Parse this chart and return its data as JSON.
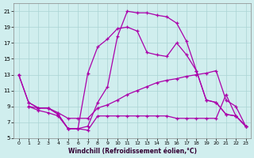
{
  "xlabel": "Windchill (Refroidissement éolien,°C)",
  "xlim": [
    -0.5,
    23.5
  ],
  "ylim": [
    5,
    22
  ],
  "xticks": [
    0,
    1,
    2,
    3,
    4,
    5,
    6,
    7,
    8,
    9,
    10,
    11,
    12,
    13,
    14,
    15,
    16,
    17,
    18,
    19,
    20,
    21,
    22,
    23
  ],
  "yticks": [
    5,
    7,
    9,
    11,
    13,
    15,
    17,
    19,
    21
  ],
  "background_color": "#d0eeee",
  "grid_color": "#aad4d4",
  "line_color": "#aa00aa",
  "lines": [
    {
      "x": [
        0,
        1,
        2,
        3,
        4,
        5,
        6,
        7,
        8,
        9,
        10,
        11,
        12,
        13,
        14,
        15,
        16,
        17,
        18,
        19,
        20,
        21,
        22,
        23
      ],
      "y": [
        13,
        9.5,
        8.8,
        8.8,
        8.0,
        6.2,
        6.2,
        6.5,
        9.5,
        11.5,
        17.8,
        21.0,
        20.8,
        20.8,
        20.5,
        20.3,
        19.5,
        17.2,
        13.5,
        9.8,
        9.5,
        8.0,
        7.8,
        6.5
      ]
    },
    {
      "x": [
        0,
        1,
        2,
        3,
        4,
        5,
        6,
        7,
        8,
        9,
        10,
        11,
        12,
        13,
        14,
        15,
        16,
        17,
        18,
        19,
        20,
        21,
        22,
        23
      ],
      "y": [
        13,
        9.5,
        8.8,
        8.8,
        8.0,
        6.2,
        6.2,
        13.2,
        16.5,
        17.5,
        18.8,
        19.0,
        18.5,
        15.8,
        15.5,
        15.3,
        17.0,
        15.5,
        13.5,
        9.8,
        9.5,
        8.0,
        7.8,
        6.5
      ]
    },
    {
      "x": [
        1,
        2,
        3,
        4,
        5,
        6,
        7,
        8,
        9,
        10,
        11,
        12,
        13,
        14,
        15,
        16,
        17,
        18,
        19,
        20,
        21,
        22,
        23
      ],
      "y": [
        9.0,
        8.8,
        8.8,
        8.2,
        7.5,
        7.5,
        7.5,
        8.8,
        9.2,
        9.8,
        10.5,
        11.0,
        11.5,
        12.0,
        12.3,
        12.5,
        12.8,
        13.0,
        13.2,
        13.5,
        9.8,
        9.0,
        6.5
      ]
    },
    {
      "x": [
        1,
        2,
        3,
        4,
        5,
        6,
        7,
        8,
        9,
        10,
        11,
        12,
        13,
        14,
        15,
        16,
        17,
        18,
        19,
        20,
        21,
        22,
        23
      ],
      "y": [
        9.0,
        8.5,
        8.2,
        7.8,
        6.2,
        6.2,
        6.0,
        7.8,
        7.8,
        7.8,
        7.8,
        7.8,
        7.8,
        7.8,
        7.8,
        7.5,
        7.5,
        7.5,
        7.5,
        7.5,
        10.5,
        7.8,
        6.5
      ]
    }
  ]
}
